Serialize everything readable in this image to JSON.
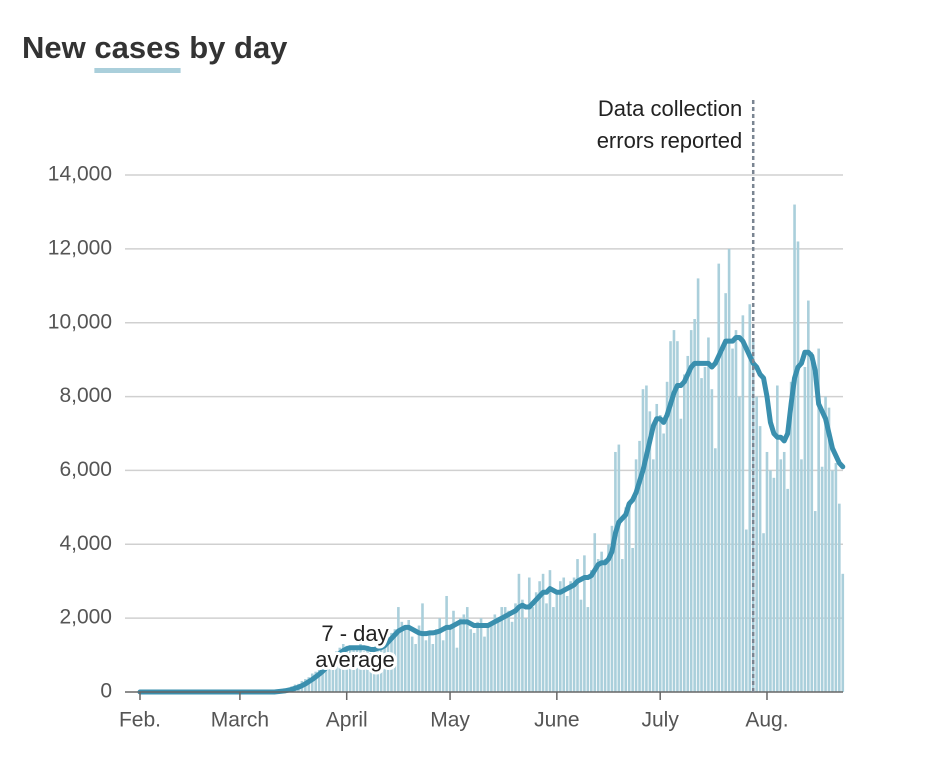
{
  "chart_data": {
    "type": "bar_line",
    "title": [
      "New",
      "cases",
      "by day"
    ],
    "categories": [
      "Feb.",
      null,
      null,
      null,
      null,
      null,
      null,
      null,
      null,
      null,
      null,
      null,
      null,
      null,
      null,
      null,
      null,
      null,
      null,
      null,
      null,
      null,
      null,
      null,
      null,
      null,
      null,
      null,
      null,
      "March",
      null,
      null,
      null,
      null,
      null,
      null,
      null,
      null,
      null,
      null,
      null,
      null,
      null,
      null,
      null,
      null,
      null,
      null,
      null,
      null,
      null,
      null,
      null,
      null,
      null,
      null,
      null,
      null,
      null,
      null,
      "April",
      null,
      null,
      null,
      null,
      null,
      null,
      null,
      null,
      null,
      null,
      null,
      null,
      null,
      null,
      null,
      null,
      null,
      null,
      null,
      null,
      null,
      null,
      null,
      null,
      null,
      null,
      null,
      null,
      null,
      "May",
      null,
      null,
      null,
      null,
      null,
      null,
      null,
      null,
      null,
      null,
      null,
      null,
      null,
      null,
      null,
      null,
      null,
      null,
      null,
      null,
      null,
      null,
      null,
      null,
      null,
      null,
      null,
      null,
      null,
      null,
      "June",
      null,
      null,
      null,
      null,
      null,
      null,
      null,
      null,
      null,
      null,
      null,
      null,
      null,
      null,
      null,
      null,
      null,
      null,
      null,
      null,
      null,
      null,
      null,
      null,
      null,
      null,
      null,
      null,
      null,
      "July",
      null,
      null,
      null,
      null,
      null,
      null,
      null,
      null,
      null,
      null,
      null,
      null,
      null,
      null,
      null,
      null,
      null,
      null,
      null,
      null,
      null,
      null,
      null,
      null,
      null,
      null,
      null,
      null,
      null,
      null,
      "Aug.",
      null,
      null,
      null,
      null,
      null,
      null,
      null,
      null,
      null,
      null,
      null,
      null,
      null,
      null,
      null,
      null,
      null,
      null,
      null,
      null,
      null,
      null
    ],
    "series": [
      {
        "kind": "bar",
        "color": "#aacfdb",
        "values": [
          0,
          0,
          0,
          0,
          0,
          0,
          0,
          0,
          0,
          0,
          0,
          0,
          0,
          0,
          0,
          0,
          0,
          0,
          0,
          0,
          0,
          0,
          0,
          0,
          0,
          0,
          0,
          0,
          0,
          0,
          0,
          0,
          0,
          0,
          0,
          10,
          20,
          20,
          40,
          50,
          60,
          70,
          100,
          110,
          150,
          200,
          220,
          300,
          350,
          400,
          500,
          550,
          600,
          700,
          800,
          900,
          1000,
          1100,
          1200,
          1300,
          1250,
          1200,
          1250,
          1150,
          1300,
          1100,
          1250,
          1050,
          1200,
          1100,
          1300,
          1400,
          1500,
          1600,
          1700,
          2300,
          1900,
          1800,
          1950,
          1500,
          1300,
          1800,
          2400,
          1400,
          1600,
          1300,
          1700,
          2000,
          1400,
          2600,
          1800,
          2200,
          1200,
          2000,
          2100,
          2300,
          1700,
          1600,
          1900,
          2000,
          1500,
          1800,
          1900,
          2100,
          2000,
          2300,
          2300,
          2200,
          1900,
          2400,
          3200,
          2500,
          2000,
          3100,
          2300,
          2700,
          3000,
          3200,
          2400,
          3300,
          2300,
          2700,
          3000,
          3100,
          2600,
          3000,
          3100,
          3600,
          2500,
          3700,
          2300,
          3300,
          4300,
          3600,
          3800,
          3600,
          4000,
          4500,
          6500,
          6700,
          3600,
          5000,
          5000,
          3900,
          6300,
          6800,
          8200,
          8300,
          7600,
          6300,
          7800,
          7500,
          7000,
          8400,
          9500,
          9800,
          9500,
          7400,
          8600,
          9100,
          9800,
          10100,
          11200,
          8500,
          8800,
          9600,
          8200,
          6600,
          11600,
          9400,
          10800,
          12000,
          9300,
          9800,
          8000,
          10200,
          4400,
          10500,
          9500,
          8000,
          7200,
          4300,
          6500,
          6000,
          5800,
          8300,
          6300,
          6500,
          5500,
          8400,
          13200,
          12200,
          6300,
          8800,
          10600,
          9200,
          4900,
          9300,
          6100,
          8000,
          7700,
          6000,
          6200,
          5100,
          3200
        ]
      },
      {
        "kind": "line",
        "name": "7 - day average",
        "color": "#3a8fae",
        "values": [
          0,
          0,
          0,
          0,
          0,
          0,
          0,
          0,
          0,
          0,
          0,
          0,
          0,
          0,
          0,
          0,
          0,
          0,
          0,
          0,
          0,
          0,
          0,
          0,
          0,
          0,
          0,
          0,
          0,
          0,
          0,
          0,
          0,
          0,
          0,
          0,
          0,
          0,
          0,
          0,
          10,
          20,
          30,
          50,
          70,
          100,
          130,
          170,
          220,
          280,
          340,
          410,
          480,
          560,
          650,
          750,
          850,
          950,
          1050,
          1120,
          1170,
          1200,
          1200,
          1200,
          1200,
          1200,
          1180,
          1150,
          1150,
          1180,
          1200,
          1250,
          1350,
          1450,
          1550,
          1650,
          1700,
          1750,
          1750,
          1700,
          1650,
          1600,
          1580,
          1580,
          1600,
          1600,
          1620,
          1650,
          1700,
          1750,
          1750,
          1800,
          1850,
          1900,
          1900,
          1900,
          1850,
          1800,
          1800,
          1800,
          1800,
          1800,
          1850,
          1900,
          1950,
          2000,
          2050,
          2100,
          2150,
          2200,
          2300,
          2350,
          2300,
          2300,
          2400,
          2500,
          2600,
          2700,
          2700,
          2800,
          2750,
          2700,
          2700,
          2750,
          2800,
          2850,
          2900,
          3000,
          3050,
          3100,
          3100,
          3150,
          3300,
          3450,
          3500,
          3500,
          3600,
          3800,
          4300,
          4600,
          4700,
          4800,
          5100,
          5200,
          5400,
          5700,
          6000,
          6400,
          6800,
          7200,
          7400,
          7400,
          7300,
          7500,
          7800,
          8100,
          8300,
          8300,
          8400,
          8600,
          8800,
          8900,
          8900,
          8900,
          8900,
          8900,
          8800,
          8900,
          9100,
          9300,
          9500,
          9500,
          9500,
          9600,
          9600,
          9500,
          9300,
          9100,
          8900,
          8800,
          8600,
          8500,
          8000,
          7300,
          7000,
          6900,
          6900,
          6800,
          7000,
          7800,
          8500,
          8800,
          8900,
          9200,
          9200,
          9100,
          8700,
          7800,
          7600,
          7400,
          7000,
          6600,
          6400,
          6200,
          6100
        ]
      }
    ],
    "ylim": [
      0,
      14000
    ],
    "yticks": [
      0,
      {
        "value": 2000,
        "label": "2,000"
      },
      {
        "value": 4000,
        "label": "4,000"
      },
      {
        "value": 6000,
        "label": "6,000"
      },
      {
        "value": 8000,
        "label": "8,000"
      },
      {
        "value": 10000,
        "label": "10,000"
      },
      {
        "value": 12000,
        "label": "12,000"
      },
      {
        "value": 14000,
        "label": "14,000"
      }
    ],
    "grid": true,
    "annotations": [
      {
        "text": [
          "Data collection",
          "errors reported"
        ],
        "index": 178
      }
    ]
  }
}
